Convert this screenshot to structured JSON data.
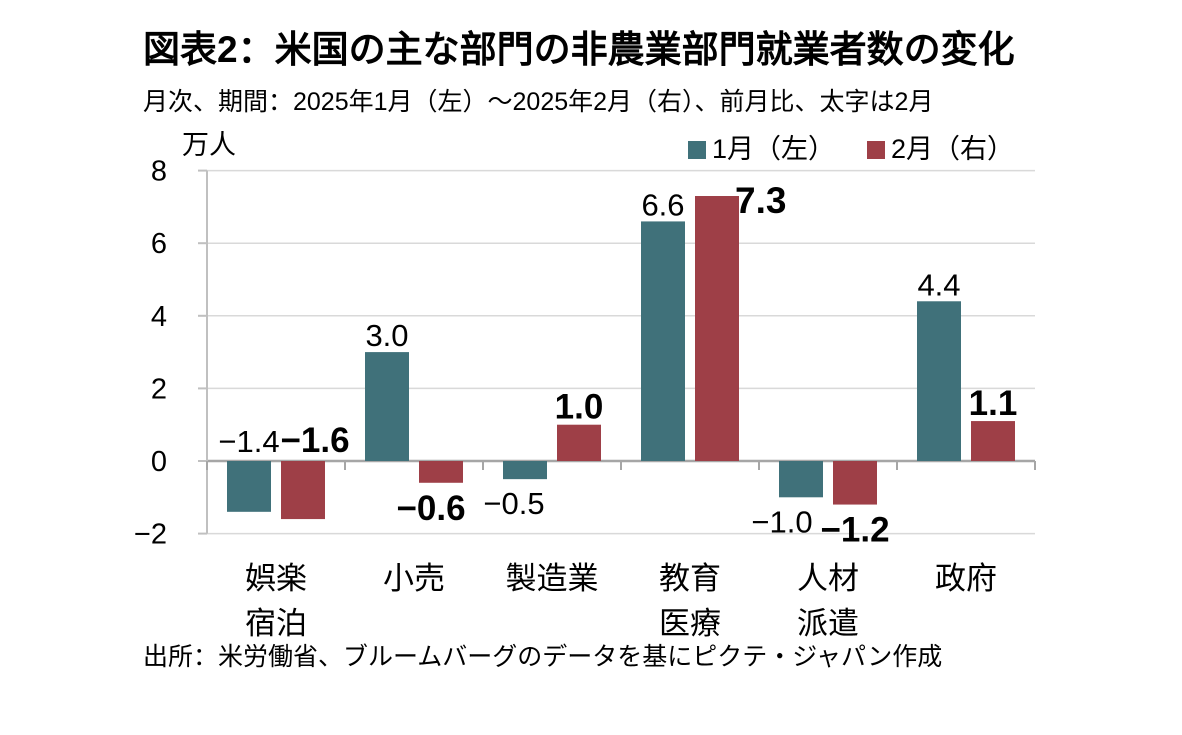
{
  "header": {
    "title": "図表2：米国の主な部門の非農業部門就業者数の変化",
    "subtitle": "月次、期間：2025年1月（左）～2025年2月（右）、前月比、太字は2月"
  },
  "source": "出所：米労働省、ブルームバーグのデータを基にピクテ・ジャパン作成",
  "chart_data": {
    "type": "bar",
    "title": "図表2：米国の主な部門の非農業部門就業者数の変化",
    "unit_label": "万人",
    "categories": [
      "娯楽宿泊",
      "小売",
      "製造業",
      "教育医療",
      "人材派遣",
      "政府"
    ],
    "category_label_lines": [
      [
        "娯楽",
        "宿泊"
      ],
      [
        "小売"
      ],
      [
        "製造業"
      ],
      [
        "教育",
        "医療"
      ],
      [
        "人材",
        "派遣"
      ],
      [
        "政府"
      ]
    ],
    "series": [
      {
        "name": "1月（左）",
        "color": "#40717A",
        "bold_labels": false,
        "values": [
          -1.4,
          3.0,
          -0.5,
          6.6,
          -1.0,
          4.4
        ]
      },
      {
        "name": "2月（右）",
        "color": "#9E3F47",
        "bold_labels": true,
        "values": [
          -1.6,
          -0.6,
          1.0,
          7.3,
          -1.2,
          1.1
        ]
      }
    ],
    "ylim": [
      -2,
      8
    ],
    "yticks": [
      -2,
      0,
      2,
      4,
      6,
      8
    ],
    "grid": true,
    "legend_position": "top-right",
    "colors": {
      "gridline": "#D9D9D9",
      "zero_line": "#A6A6A6",
      "axis_line": "#C0C0C0",
      "text": "#000000"
    },
    "label_overrides": [
      {
        "series": 0,
        "index": 0,
        "pos": "above-axis"
      },
      {
        "series": 1,
        "index": 0,
        "pos": "above-axis",
        "dx": 12
      },
      {
        "series": 0,
        "index": 2,
        "dx": -11
      },
      {
        "series": 1,
        "index": 1,
        "dx": -10
      },
      {
        "series": 0,
        "index": 4,
        "dx": -19
      },
      {
        "series": 1,
        "index": 3,
        "pos": "right-of-top",
        "font_size": 37
      }
    ]
  }
}
